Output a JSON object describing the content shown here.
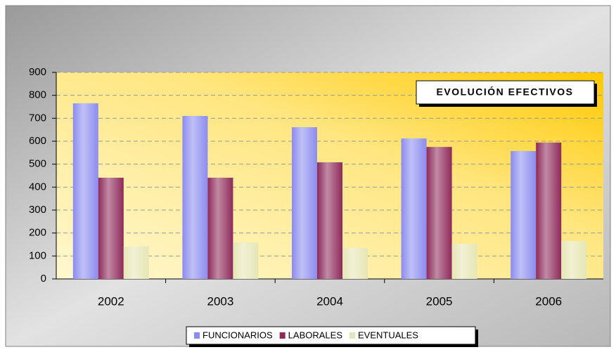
{
  "chart_data": {
    "type": "bar",
    "title": "EVOLUCIÓN EFECTIVOS",
    "categories": [
      "2002",
      "2003",
      "2004",
      "2005",
      "2006"
    ],
    "series": [
      {
        "name": "FUNCIONARIOS",
        "color": "#8c8cf0",
        "values": [
          765,
          710,
          661,
          612,
          557
        ]
      },
      {
        "name": "LABORALES",
        "color": "#8e2a5a",
        "values": [
          441,
          441,
          508,
          575,
          594
        ]
      },
      {
        "name": "EVENTUALES",
        "color": "#e6e6b4",
        "values": [
          141,
          159,
          135,
          153,
          165
        ]
      }
    ],
    "ylim": [
      0,
      900
    ],
    "yticks": [
      0,
      100,
      200,
      300,
      400,
      500,
      600,
      700,
      800,
      900
    ],
    "grid": true,
    "legend": "bottom"
  }
}
